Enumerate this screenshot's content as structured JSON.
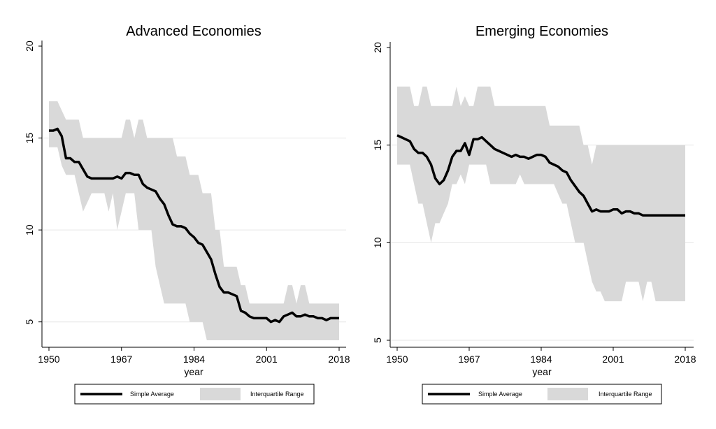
{
  "chart_data": [
    {
      "type": "line",
      "title": "Advanced Economies",
      "xlabel": "year",
      "ylabel": "",
      "xlim": [
        1950,
        2018
      ],
      "ylim": [
        4,
        20
      ],
      "x_ticks": [
        1950,
        1967,
        1984,
        2001,
        2018
      ],
      "y_ticks": [
        5,
        10,
        15,
        20
      ],
      "grid": true,
      "legend_position": "bottom",
      "colors": {
        "average": "#000000",
        "band": "#d9d9d9",
        "grid": "#e6e6e6"
      },
      "series": [
        {
          "name": "Simple Average",
          "x": [
            1950,
            1951,
            1952,
            1953,
            1954,
            1955,
            1956,
            1957,
            1958,
            1959,
            1960,
            1961,
            1962,
            1963,
            1964,
            1965,
            1966,
            1967,
            1968,
            1969,
            1970,
            1971,
            1972,
            1973,
            1974,
            1975,
            1976,
            1977,
            1978,
            1979,
            1980,
            1981,
            1982,
            1983,
            1984,
            1985,
            1986,
            1987,
            1988,
            1989,
            1990,
            1991,
            1992,
            1993,
            1994,
            1995,
            1996,
            1997,
            1998,
            1999,
            2000,
            2001,
            2002,
            2003,
            2004,
            2005,
            2006,
            2007,
            2008,
            2009,
            2010,
            2011,
            2012,
            2013,
            2014,
            2015,
            2016,
            2017,
            2018
          ],
          "y": [
            15.4,
            15.4,
            15.5,
            15.1,
            13.9,
            13.9,
            13.7,
            13.7,
            13.3,
            12.9,
            12.8,
            12.8,
            12.8,
            12.8,
            12.8,
            12.8,
            12.9,
            12.8,
            13.1,
            13.1,
            13.0,
            13.0,
            12.5,
            12.3,
            12.2,
            12.1,
            11.7,
            11.4,
            10.8,
            10.3,
            10.2,
            10.2,
            10.1,
            9.8,
            9.6,
            9.3,
            9.2,
            8.8,
            8.4,
            7.6,
            6.9,
            6.6,
            6.6,
            6.5,
            6.4,
            5.6,
            5.5,
            5.3,
            5.2,
            5.2,
            5.2,
            5.2,
            5.0,
            5.1,
            5.0,
            5.3,
            5.4,
            5.5,
            5.3,
            5.3,
            5.4,
            5.3,
            5.3,
            5.2,
            5.2,
            5.1,
            5.2,
            5.2,
            5.2
          ]
        },
        {
          "name": "Interquartile Range",
          "x": [
            1950,
            1951,
            1952,
            1953,
            1954,
            1955,
            1956,
            1957,
            1958,
            1959,
            1960,
            1961,
            1962,
            1963,
            1964,
            1965,
            1966,
            1967,
            1968,
            1969,
            1970,
            1971,
            1972,
            1973,
            1974,
            1975,
            1976,
            1977,
            1978,
            1979,
            1980,
            1981,
            1982,
            1983,
            1984,
            1985,
            1986,
            1987,
            1988,
            1989,
            1990,
            1991,
            1992,
            1993,
            1994,
            1995,
            1996,
            1997,
            1998,
            1999,
            2000,
            2001,
            2002,
            2003,
            2004,
            2005,
            2006,
            2007,
            2008,
            2009,
            2010,
            2011,
            2012,
            2013,
            2014,
            2015,
            2016,
            2017,
            2018
          ],
          "low": [
            14.5,
            14.5,
            14.5,
            13.5,
            13,
            13,
            13,
            12,
            11,
            11.5,
            12,
            12,
            12,
            12,
            11,
            12,
            10,
            11,
            12,
            12,
            12,
            10,
            10,
            10,
            10,
            8,
            7,
            6,
            6,
            6,
            6,
            6,
            6,
            5,
            5,
            5,
            5,
            4,
            4,
            4,
            4,
            4,
            4,
            4,
            4,
            4,
            4,
            4,
            4,
            4,
            4,
            4,
            4,
            4,
            4,
            4,
            4,
            4,
            4,
            4,
            4,
            4,
            4,
            4,
            4,
            4,
            4,
            4,
            4
          ],
          "high": [
            17,
            17,
            17,
            16.5,
            16,
            16,
            16,
            16,
            15,
            15,
            15,
            15,
            15,
            15,
            15,
            15,
            15,
            15,
            16,
            16,
            15,
            16,
            16,
            15,
            15,
            15,
            15,
            15,
            15,
            15,
            14,
            14,
            14,
            13,
            13,
            13,
            12,
            12,
            12,
            10,
            10,
            8,
            8,
            8,
            8,
            7,
            7,
            6,
            6,
            6,
            6,
            6,
            6,
            6,
            6,
            6,
            7,
            7,
            6,
            7,
            7,
            6,
            6,
            6,
            6,
            6,
            6,
            6,
            6
          ]
        }
      ],
      "legend": [
        "Simple Average",
        "Interquartile Range"
      ]
    },
    {
      "type": "line",
      "title": "Emerging Economies",
      "xlabel": "year",
      "ylabel": "",
      "xlim": [
        1950,
        2018
      ],
      "ylim": [
        5,
        20
      ],
      "x_ticks": [
        1950,
        1967,
        1984,
        2001,
        2018
      ],
      "y_ticks": [
        5,
        10,
        15,
        20
      ],
      "grid": true,
      "legend_position": "bottom",
      "colors": {
        "average": "#000000",
        "band": "#d9d9d9",
        "grid": "#e6e6e6"
      },
      "series": [
        {
          "name": "Simple Average",
          "x": [
            1950,
            1951,
            1952,
            1953,
            1954,
            1955,
            1956,
            1957,
            1958,
            1959,
            1960,
            1961,
            1962,
            1963,
            1964,
            1965,
            1966,
            1967,
            1968,
            1969,
            1970,
            1971,
            1972,
            1973,
            1974,
            1975,
            1976,
            1977,
            1978,
            1979,
            1980,
            1981,
            1982,
            1983,
            1984,
            1985,
            1986,
            1987,
            1988,
            1989,
            1990,
            1991,
            1992,
            1993,
            1994,
            1995,
            1996,
            1997,
            1998,
            1999,
            2000,
            2001,
            2002,
            2003,
            2004,
            2005,
            2006,
            2007,
            2008,
            2009,
            2010,
            2011,
            2012,
            2013,
            2014,
            2015,
            2016,
            2017,
            2018
          ],
          "y": [
            15.5,
            15.4,
            15.3,
            15.2,
            14.8,
            14.6,
            14.6,
            14.4,
            14.0,
            13.3,
            13.0,
            13.2,
            13.7,
            14.4,
            14.7,
            14.7,
            15.1,
            14.5,
            15.3,
            15.3,
            15.4,
            15.2,
            15.0,
            14.8,
            14.7,
            14.6,
            14.5,
            14.4,
            14.5,
            14.4,
            14.4,
            14.3,
            14.4,
            14.5,
            14.5,
            14.4,
            14.1,
            14.0,
            13.9,
            13.7,
            13.6,
            13.2,
            12.9,
            12.6,
            12.4,
            12.0,
            11.6,
            11.7,
            11.6,
            11.6,
            11.6,
            11.7,
            11.7,
            11.5,
            11.6,
            11.6,
            11.5,
            11.5,
            11.4,
            11.4,
            11.4,
            11.4,
            11.4,
            11.4,
            11.4,
            11.4,
            11.4,
            11.4,
            11.4
          ]
        },
        {
          "name": "Interquartile Range",
          "x": [
            1950,
            1951,
            1952,
            1953,
            1954,
            1955,
            1956,
            1957,
            1958,
            1959,
            1960,
            1961,
            1962,
            1963,
            1964,
            1965,
            1966,
            1967,
            1968,
            1969,
            1970,
            1971,
            1972,
            1973,
            1974,
            1975,
            1976,
            1977,
            1978,
            1979,
            1980,
            1981,
            1982,
            1983,
            1984,
            1985,
            1986,
            1987,
            1988,
            1989,
            1990,
            1991,
            1992,
            1993,
            1994,
            1995,
            1996,
            1997,
            1998,
            1999,
            2000,
            2001,
            2002,
            2003,
            2004,
            2005,
            2006,
            2007,
            2008,
            2009,
            2010,
            2011,
            2012,
            2013,
            2014,
            2015,
            2016,
            2017,
            2018
          ],
          "low": [
            14,
            14,
            14,
            14,
            13,
            12,
            12,
            11,
            10,
            11,
            11,
            11.5,
            12,
            13,
            13,
            13.5,
            13,
            14,
            14,
            14,
            14,
            14,
            13,
            13,
            13,
            13,
            13,
            13,
            13,
            13.5,
            13,
            13,
            13,
            13,
            13,
            13,
            13,
            13,
            12.5,
            12,
            12,
            11,
            10,
            10,
            10,
            9,
            8,
            7.5,
            7.5,
            7,
            7,
            7,
            7,
            7,
            8,
            8,
            8,
            8,
            7,
            8,
            8,
            7,
            7,
            7,
            7,
            7,
            7,
            7,
            7
          ],
          "high": [
            18,
            18,
            18,
            18,
            17,
            17,
            18,
            18,
            17,
            17,
            17,
            17,
            17,
            17,
            18,
            17,
            17.5,
            17,
            17,
            18,
            18,
            18,
            18,
            17,
            17,
            17,
            17,
            17,
            17,
            17,
            17,
            17,
            17,
            17,
            17,
            17,
            16,
            16,
            16,
            16,
            16,
            16,
            16,
            16,
            15,
            15,
            14,
            15,
            15,
            15,
            15,
            15,
            15,
            15,
            15,
            15,
            15,
            15,
            15,
            15,
            15,
            15,
            15,
            15,
            15,
            15,
            15,
            15,
            15
          ]
        }
      ],
      "legend": [
        "Simple Average",
        "Interquartile Range"
      ]
    }
  ]
}
